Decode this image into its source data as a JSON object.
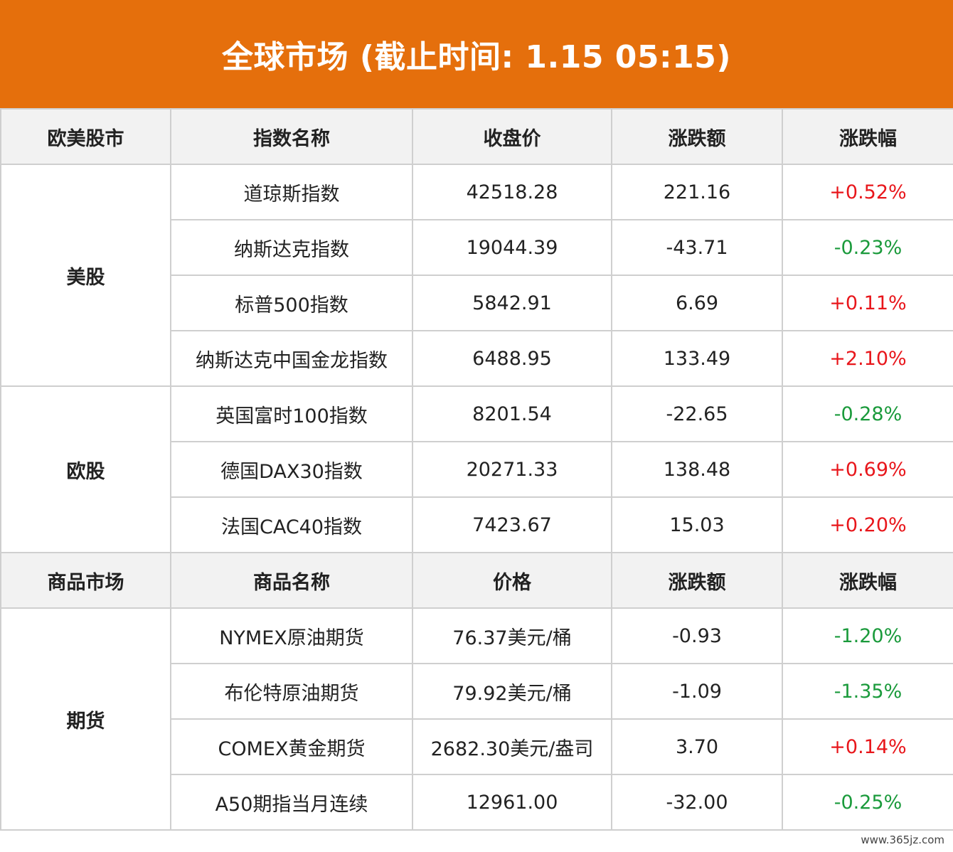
{
  "title": "全球市场 (截止时间: 1.15 05:15)",
  "colors": {
    "header_bg": "#e56f0c",
    "up": "#e8161b",
    "down": "#1a9a3b"
  },
  "stock_header": [
    "欧美股市",
    "指数名称",
    "收盘价",
    "涨跌额",
    "涨跌幅"
  ],
  "stock_groups": [
    {
      "name": "美股",
      "rows": [
        {
          "name": "道琼斯指数",
          "price": "42518.28",
          "change": "221.16",
          "pct": "+0.52%",
          "dir": "up"
        },
        {
          "name": "纳斯达克指数",
          "price": "19044.39",
          "change": "-43.71",
          "pct": "-0.23%",
          "dir": "down"
        },
        {
          "name": "标普500指数",
          "price": "5842.91",
          "change": "6.69",
          "pct": "+0.11%",
          "dir": "up"
        },
        {
          "name": "纳斯达克中国金龙指数",
          "price": "6488.95",
          "change": "133.49",
          "pct": "+2.10%",
          "dir": "up"
        }
      ]
    },
    {
      "name": "欧股",
      "rows": [
        {
          "name": "英国富时100指数",
          "price": "8201.54",
          "change": "-22.65",
          "pct": "-0.28%",
          "dir": "down"
        },
        {
          "name": "德国DAX30指数",
          "price": "20271.33",
          "change": "138.48",
          "pct": "+0.69%",
          "dir": "up"
        },
        {
          "name": "法国CAC40指数",
          "price": "7423.67",
          "change": "15.03",
          "pct": "+0.20%",
          "dir": "up"
        }
      ]
    }
  ],
  "commodity_header": [
    "商品市场",
    "商品名称",
    "价格",
    "涨跌额",
    "涨跌幅"
  ],
  "commodity_groups": [
    {
      "name": "期货",
      "rows": [
        {
          "name": "NYMEX原油期货",
          "price": "76.37美元/桶",
          "change": "-0.93",
          "pct": "-1.20%",
          "dir": "down"
        },
        {
          "name": "布伦特原油期货",
          "price": "79.92美元/桶",
          "change": "-1.09",
          "pct": "-1.35%",
          "dir": "down"
        },
        {
          "name": "COMEX黄金期货",
          "price": "2682.30美元/盎司",
          "change": "3.70",
          "pct": "+0.14%",
          "dir": "up"
        },
        {
          "name": "A50期指当月连续",
          "price": "12961.00",
          "change": "-32.00",
          "pct": "-0.25%",
          "dir": "down"
        }
      ]
    }
  ],
  "watermark": "www.365jz.com"
}
